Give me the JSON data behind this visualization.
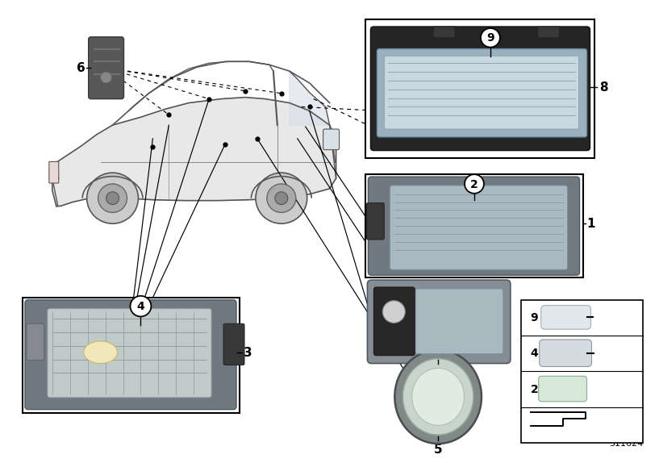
{
  "bg_color": "#ffffff",
  "diagram_id": "311624",
  "car_color": "#d0d0d0",
  "car_edge_color": "#555555",
  "component_frame_color": "#000000",
  "lamp_dark": "#404040",
  "lamp_mid": "#808890",
  "lamp_light": "#b8c4cc",
  "sensor_color": "#606060"
}
